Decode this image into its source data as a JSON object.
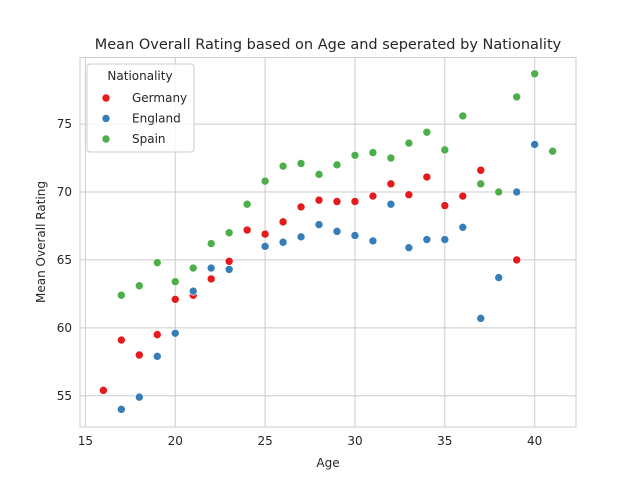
{
  "chart_data": {
    "type": "scatter",
    "title": "Mean Overall Rating based on Age and seperated by Nationality",
    "xlabel": "Age",
    "ylabel": "Mean Overall Rating",
    "xlim": [
      14.7,
      42.3
    ],
    "ylim": [
      52.7,
      79.9
    ],
    "xticks": [
      15,
      20,
      25,
      30,
      35,
      40
    ],
    "yticks": [
      55,
      60,
      65,
      70,
      75
    ],
    "grid": true,
    "legend": {
      "title": "Nationality",
      "placement": "top-left"
    },
    "series": [
      {
        "name": "Germany",
        "color": "#e41a1c",
        "points": [
          [
            16,
            55.4
          ],
          [
            17,
            59.1
          ],
          [
            18,
            58.0
          ],
          [
            19,
            59.5
          ],
          [
            20,
            62.1
          ],
          [
            21,
            62.4
          ],
          [
            22,
            63.6
          ],
          [
            23,
            64.9
          ],
          [
            24,
            67.2
          ],
          [
            25,
            66.9
          ],
          [
            26,
            67.8
          ],
          [
            27,
            68.9
          ],
          [
            28,
            69.4
          ],
          [
            29,
            69.3
          ],
          [
            30,
            69.3
          ],
          [
            31,
            69.7
          ],
          [
            32,
            70.6
          ],
          [
            33,
            69.8
          ],
          [
            34,
            71.1
          ],
          [
            35,
            69.0
          ],
          [
            36,
            69.7
          ],
          [
            37,
            71.6
          ],
          [
            39,
            65.0
          ]
        ]
      },
      {
        "name": "England",
        "color": "#377eb8",
        "points": [
          [
            17,
            54.0
          ],
          [
            18,
            54.9
          ],
          [
            19,
            57.9
          ],
          [
            20,
            59.6
          ],
          [
            21,
            62.7
          ],
          [
            22,
            64.4
          ],
          [
            23,
            64.3
          ],
          [
            25,
            66.0
          ],
          [
            26,
            66.3
          ],
          [
            27,
            66.7
          ],
          [
            28,
            67.6
          ],
          [
            29,
            67.1
          ],
          [
            30,
            66.8
          ],
          [
            31,
            66.4
          ],
          [
            32,
            69.1
          ],
          [
            33,
            65.9
          ],
          [
            34,
            66.5
          ],
          [
            35,
            66.5
          ],
          [
            36,
            67.4
          ],
          [
            37,
            60.7
          ],
          [
            38,
            63.7
          ],
          [
            39,
            70.0
          ],
          [
            40,
            73.5
          ]
        ]
      },
      {
        "name": "Spain",
        "color": "#4daf4a",
        "points": [
          [
            17,
            62.4
          ],
          [
            18,
            63.1
          ],
          [
            19,
            64.8
          ],
          [
            20,
            63.4
          ],
          [
            21,
            64.4
          ],
          [
            22,
            66.2
          ],
          [
            23,
            67.0
          ],
          [
            24,
            69.1
          ],
          [
            25,
            70.8
          ],
          [
            26,
            71.9
          ],
          [
            27,
            72.1
          ],
          [
            28,
            71.3
          ],
          [
            29,
            72.0
          ],
          [
            30,
            72.7
          ],
          [
            31,
            72.9
          ],
          [
            32,
            72.5
          ],
          [
            33,
            73.6
          ],
          [
            34,
            74.4
          ],
          [
            35,
            73.1
          ],
          [
            36,
            75.6
          ],
          [
            37,
            70.6
          ],
          [
            38,
            70.0
          ],
          [
            39,
            77.0
          ],
          [
            40,
            78.7
          ],
          [
            41,
            73.0
          ]
        ]
      }
    ]
  }
}
